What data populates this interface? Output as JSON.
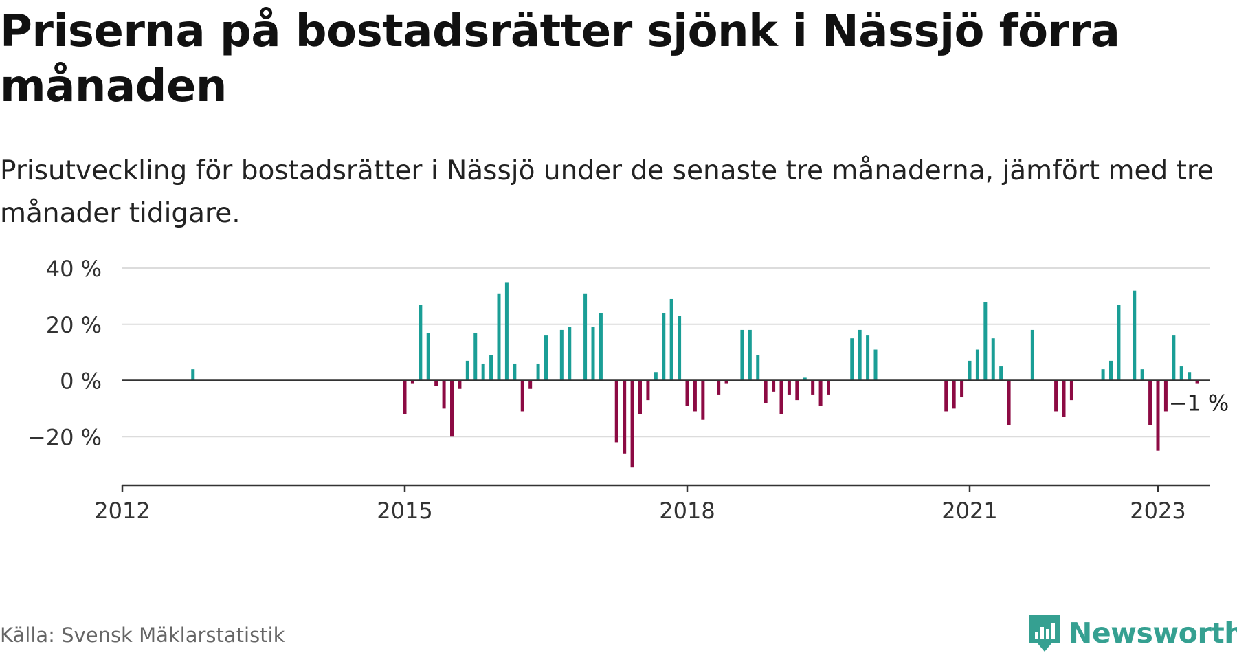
{
  "title": "Priserna på bostadsrätter sjönk i Nässjö förra månaden",
  "subtitle": "Prisutveckling för bostadsrätter i Nässjö under de senaste tre månaderna, jämfört med tre månader tidigare.",
  "source": "Källa: Svensk Mäklarstatistik",
  "brand": "Newsworthy",
  "colors": {
    "positive": "#1a9e96",
    "negative": "#8c0a43",
    "brand": "#35a091"
  },
  "chart_data": {
    "type": "bar",
    "x_unit": "month",
    "ylim": [
      -30,
      40
    ],
    "yticks": [
      40,
      20,
      0,
      -20
    ],
    "ytick_labels": [
      "40 %",
      "20 %",
      "0 %",
      "−20 %"
    ],
    "xticks": [
      "2012-01",
      "2015-01",
      "2018-01",
      "2021-01",
      "2023-01"
    ],
    "xtick_labels": [
      "2012",
      "2015",
      "2018",
      "2021",
      "2023"
    ],
    "grid": true,
    "annotation": {
      "x": "2022-12",
      "label": "−1 %"
    },
    "points": [
      {
        "x": "2012-10",
        "y": 4
      },
      {
        "x": "2015-01",
        "y": -12
      },
      {
        "x": "2015-02",
        "y": -1
      },
      {
        "x": "2015-03",
        "y": 27
      },
      {
        "x": "2015-04",
        "y": 17
      },
      {
        "x": "2015-05",
        "y": -2
      },
      {
        "x": "2015-06",
        "y": -10
      },
      {
        "x": "2015-07",
        "y": -20
      },
      {
        "x": "2015-08",
        "y": -3
      },
      {
        "x": "2015-09",
        "y": 7
      },
      {
        "x": "2015-10",
        "y": 17
      },
      {
        "x": "2015-11",
        "y": 6
      },
      {
        "x": "2015-12",
        "y": 9
      },
      {
        "x": "2016-01",
        "y": 31
      },
      {
        "x": "2016-02",
        "y": 35
      },
      {
        "x": "2016-03",
        "y": 6
      },
      {
        "x": "2016-04",
        "y": -11
      },
      {
        "x": "2016-05",
        "y": -3
      },
      {
        "x": "2016-06",
        "y": 6
      },
      {
        "x": "2016-07",
        "y": 16
      },
      {
        "x": "2016-09",
        "y": 18
      },
      {
        "x": "2016-10",
        "y": 19
      },
      {
        "x": "2016-12",
        "y": 31
      },
      {
        "x": "2017-01",
        "y": 19
      },
      {
        "x": "2017-02",
        "y": 24
      },
      {
        "x": "2017-04",
        "y": -22
      },
      {
        "x": "2017-05",
        "y": -26
      },
      {
        "x": "2017-06",
        "y": -31
      },
      {
        "x": "2017-07",
        "y": -12
      },
      {
        "x": "2017-08",
        "y": -7
      },
      {
        "x": "2017-09",
        "y": 3
      },
      {
        "x": "2017-10",
        "y": 24
      },
      {
        "x": "2017-11",
        "y": 29
      },
      {
        "x": "2017-12",
        "y": 23
      },
      {
        "x": "2018-01",
        "y": -9
      },
      {
        "x": "2018-02",
        "y": -11
      },
      {
        "x": "2018-03",
        "y": -14
      },
      {
        "x": "2018-05",
        "y": -5
      },
      {
        "x": "2018-06",
        "y": -1
      },
      {
        "x": "2018-08",
        "y": 18
      },
      {
        "x": "2018-09",
        "y": 18
      },
      {
        "x": "2018-10",
        "y": 9
      },
      {
        "x": "2018-11",
        "y": -8
      },
      {
        "x": "2018-12",
        "y": -4
      },
      {
        "x": "2019-01",
        "y": -12
      },
      {
        "x": "2019-02",
        "y": -5
      },
      {
        "x": "2019-03",
        "y": -7
      },
      {
        "x": "2019-04",
        "y": 1
      },
      {
        "x": "2019-05",
        "y": -5
      },
      {
        "x": "2019-06",
        "y": -9
      },
      {
        "x": "2019-07",
        "y": -5
      },
      {
        "x": "2019-10",
        "y": 15
      },
      {
        "x": "2019-11",
        "y": 18
      },
      {
        "x": "2019-12",
        "y": 16
      },
      {
        "x": "2020-01",
        "y": 11
      },
      {
        "x": "2020-10",
        "y": -11
      },
      {
        "x": "2020-11",
        "y": -10
      },
      {
        "x": "2020-12",
        "y": -6
      },
      {
        "x": "2021-01",
        "y": 7
      },
      {
        "x": "2021-02",
        "y": 11
      },
      {
        "x": "2021-03",
        "y": 28
      },
      {
        "x": "2021-04",
        "y": 15
      },
      {
        "x": "2021-05",
        "y": 5
      },
      {
        "x": "2021-06",
        "y": -16
      },
      {
        "x": "2021-09",
        "y": 18
      },
      {
        "x": "2021-12",
        "y": -11
      },
      {
        "x": "2022-01",
        "y": -13
      },
      {
        "x": "2022-02",
        "y": -7
      },
      {
        "x": "2022-06",
        "y": 4
      },
      {
        "x": "2022-07",
        "y": 7
      },
      {
        "x": "2022-08",
        "y": 27
      },
      {
        "x": "2022-10",
        "y": 32
      },
      {
        "x": "2022-11",
        "y": 4
      },
      {
        "x": "2022-12",
        "y": -16
      },
      {
        "x": "2023-01",
        "y": -25
      },
      {
        "x": "2023-02",
        "y": -11
      },
      {
        "x": "2023-03",
        "y": 16
      },
      {
        "x": "2023-04",
        "y": 5
      },
      {
        "x": "2023-05",
        "y": 3
      },
      {
        "x": "2023-06",
        "y": -1
      }
    ]
  }
}
